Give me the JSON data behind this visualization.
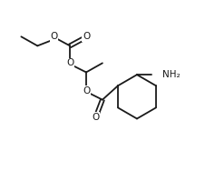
{
  "background": "#ffffff",
  "line_color": "#1a1a1a",
  "line_width": 1.3,
  "font_size": 7.5,
  "figsize": [
    2.37,
    1.88
  ],
  "dpi": 100,
  "xlim": [
    0,
    10
  ],
  "ylim": [
    0,
    8.4
  ]
}
